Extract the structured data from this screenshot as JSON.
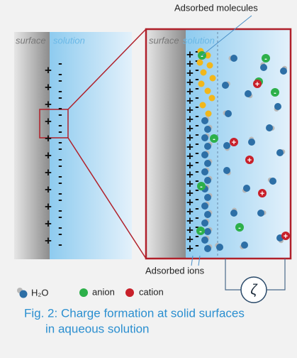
{
  "labels": {
    "adsorbed_molecules": "Adsorbed molecules",
    "adsorbed_ions": "Adsorbed ions",
    "surface": "surface",
    "solution": "solution",
    "zeta": "ζ"
  },
  "signs": {
    "plus": "+",
    "minus": "-"
  },
  "legend": {
    "water": "H₂O",
    "anion": "anion",
    "cation": "cation"
  },
  "caption": {
    "lines": [
      "Fig. 2: Charge formation at solid surfaces",
      "in aqueous solution"
    ]
  }
}
